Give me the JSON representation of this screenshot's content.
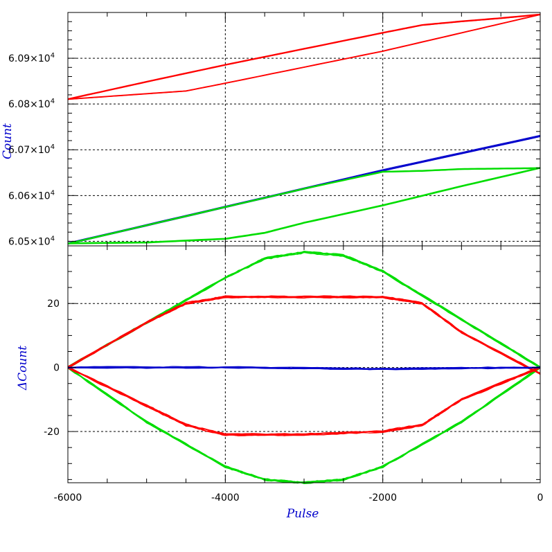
{
  "chart_data": [
    {
      "type": "line",
      "panel": "top",
      "ylabel": "Count",
      "xlim": [
        -6000,
        0
      ],
      "ylim": [
        60490,
        61000
      ],
      "grid": true,
      "y_ticks": [
        {
          "value": 60500,
          "mantissa": "6.05",
          "exponent": "4"
        },
        {
          "value": 60600,
          "mantissa": "6.06",
          "exponent": "4"
        },
        {
          "value": 60700,
          "mantissa": "6.07",
          "exponent": "4"
        },
        {
          "value": 60800,
          "mantissa": "6.08",
          "exponent": "4"
        },
        {
          "value": 60900,
          "mantissa": "6.09",
          "exponent": "4"
        }
      ],
      "series": [
        {
          "color": "#ff0000",
          "x": [
            -6000,
            -5000,
            -4000,
            -3000,
            -2000,
            -1500,
            -1000,
            -500,
            0
          ],
          "y": [
            60810,
            60848,
            60885,
            60920,
            60955,
            60972,
            60980,
            60987,
            60995
          ]
        },
        {
          "color": "#ff0000",
          "x": [
            -6000,
            -5000,
            -4500,
            -4000,
            -3000,
            -2000,
            -1000,
            0
          ],
          "y": [
            60810,
            60822,
            60828,
            60845,
            60880,
            60915,
            60955,
            60995
          ]
        },
        {
          "color": "#0000cc",
          "x": [
            -6000,
            -4000,
            -2000,
            0
          ],
          "y": [
            60495,
            60575,
            60655,
            60730
          ]
        },
        {
          "color": "#00dd00",
          "x": [
            -6000,
            -3000,
            -2000,
            -1500,
            -1000,
            -500,
            0
          ],
          "y": [
            60495,
            60615,
            60652,
            60654,
            60658,
            60659,
            60660
          ]
        },
        {
          "color": "#00dd00",
          "x": [
            -6000,
            -5000,
            -4000,
            -3500,
            -3000,
            -2000,
            -1000,
            0
          ],
          "y": [
            60495,
            60497,
            60505,
            60518,
            60540,
            60578,
            60620,
            60660
          ]
        }
      ]
    },
    {
      "type": "line",
      "panel": "bottom",
      "xlabel": "Pulse",
      "ylabel": "ΔCount",
      "xlim": [
        -6000,
        0
      ],
      "ylim": [
        -36,
        38
      ],
      "grid": true,
      "x_ticks": [
        "-6000",
        "-4000",
        "-2000",
        "0"
      ],
      "y_ticks": [
        "20",
        "0",
        "-20"
      ],
      "series": [
        {
          "color": "#00dd00",
          "x": [
            -6000,
            -5000,
            -4000,
            -3500,
            -3000,
            -2500,
            -2000,
            -1000,
            0
          ],
          "y": [
            0,
            14,
            28,
            34,
            36,
            35,
            30,
            15,
            0
          ]
        },
        {
          "color": "#00dd00",
          "x": [
            -6000,
            -5000,
            -4000,
            -3500,
            -3000,
            -2500,
            -2000,
            -1000,
            0
          ],
          "y": [
            0,
            -17,
            -31,
            -35,
            -36,
            -35,
            -31,
            -17,
            0
          ]
        },
        {
          "color": "#ff0000",
          "x": [
            -6000,
            -5000,
            -4500,
            -4000,
            -3000,
            -2000,
            -1500,
            -1000,
            0
          ],
          "y": [
            0,
            14,
            20,
            22,
            22,
            22,
            20,
            11,
            -2
          ]
        },
        {
          "color": "#ff0000",
          "x": [
            -6000,
            -5000,
            -4500,
            -4000,
            -3000,
            -2000,
            -1500,
            -1000,
            0
          ],
          "y": [
            0,
            -12,
            -18,
            -21,
            -21,
            -20,
            -18,
            -10,
            0
          ]
        },
        {
          "color": "#0000cc",
          "x": [
            -6000,
            -4000,
            -2000,
            0
          ],
          "y": [
            0,
            0,
            -0.5,
            0
          ]
        }
      ]
    }
  ]
}
